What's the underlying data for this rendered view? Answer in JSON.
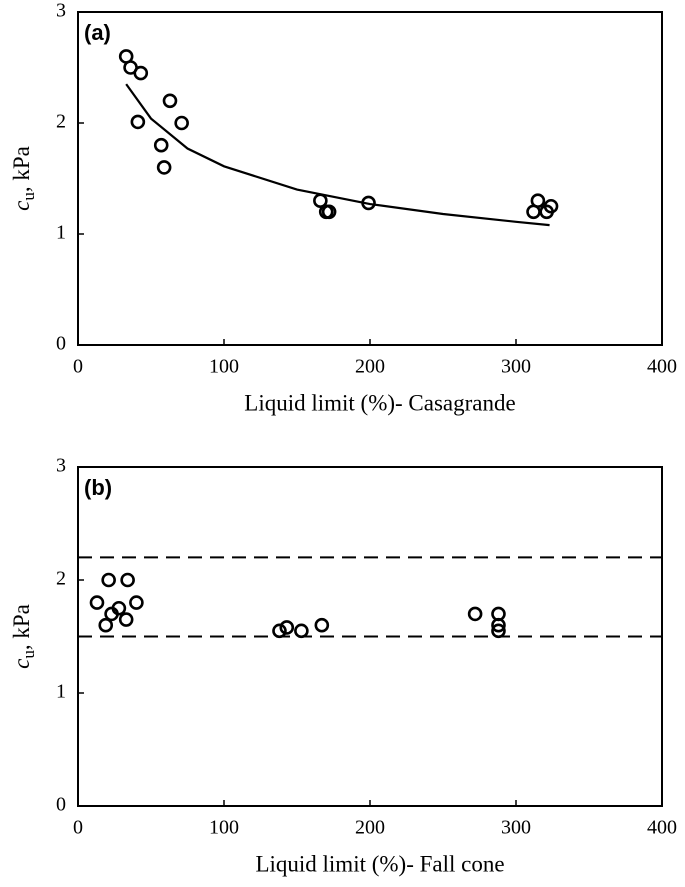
{
  "chart_data": [
    {
      "type": "scatter",
      "panel_label": "(a)",
      "xlabel": "Liquid limit (%)- Casagrande",
      "ylabel": {
        "symbol": "c",
        "subscript": "u",
        "unit": ", kPa"
      },
      "x": [
        33,
        36,
        43,
        41,
        57,
        59,
        63,
        71,
        166,
        170,
        172,
        199,
        312,
        315,
        321,
        324
      ],
      "values": [
        2.6,
        2.5,
        2.45,
        2.01,
        1.8,
        1.6,
        2.2,
        2.0,
        1.3,
        1.2,
        1.2,
        1.28,
        1.2,
        1.3,
        1.2,
        1.25
      ],
      "curve": {
        "x": [
          33,
          50,
          75,
          100,
          150,
          200,
          250,
          300,
          323
        ],
        "values": [
          2.35,
          2.04,
          1.77,
          1.61,
          1.4,
          1.27,
          1.18,
          1.11,
          1.08
        ]
      },
      "color": "#000000",
      "xlim": [
        0,
        400
      ],
      "xticks": [
        0,
        100,
        200,
        300,
        400
      ],
      "ylim": [
        0,
        3
      ],
      "yticks": [
        0,
        1,
        2,
        3
      ]
    },
    {
      "type": "scatter",
      "panel_label": "(b)",
      "xlabel": "Liquid limit (%)- Fall cone",
      "ylabel": {
        "symbol": "c",
        "subscript": "u",
        "unit": ", kPa"
      },
      "x": [
        13,
        19,
        21,
        23,
        28,
        33,
        34,
        40,
        138,
        143,
        153,
        167,
        272,
        288,
        288,
        288
      ],
      "values": [
        1.8,
        1.6,
        2.0,
        1.7,
        1.75,
        1.65,
        2.0,
        1.8,
        1.55,
        1.58,
        1.55,
        1.6,
        1.7,
        1.7,
        1.6,
        1.55
      ],
      "hlines": [
        2.2,
        1.5
      ],
      "color": "#000000",
      "xlim": [
        0,
        400
      ],
      "xticks": [
        0,
        100,
        200,
        300,
        400
      ],
      "ylim": [
        0,
        3
      ],
      "yticks": [
        0,
        1,
        2,
        3
      ]
    }
  ]
}
